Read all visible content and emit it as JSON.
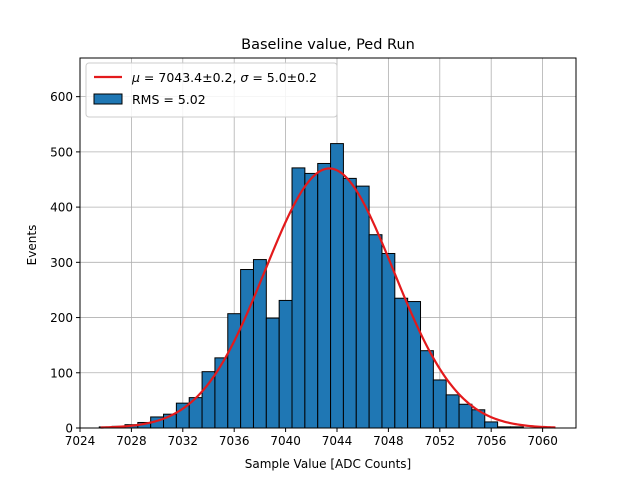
{
  "chart_data": {
    "type": "bar",
    "title": "Baseline value, Ped Run",
    "xlabel": "Sample Value [ADC Counts]",
    "ylabel": "Events",
    "xlim": [
      7024,
      7062.6
    ],
    "ylim": [
      0,
      670
    ],
    "xticks": [
      7024,
      7028,
      7032,
      7036,
      7040,
      7044,
      7048,
      7052,
      7056,
      7060
    ],
    "yticks": [
      0,
      100,
      200,
      300,
      400,
      500,
      600
    ],
    "grid": true,
    "legend_position": "top-left",
    "bin_width": 1,
    "bins": [
      {
        "x": 7026,
        "count": 2
      },
      {
        "x": 7027,
        "count": 3
      },
      {
        "x": 7028,
        "count": 6
      },
      {
        "x": 7029,
        "count": 10
      },
      {
        "x": 7030,
        "count": 20
      },
      {
        "x": 7031,
        "count": 25
      },
      {
        "x": 7032,
        "count": 45
      },
      {
        "x": 7033,
        "count": 55
      },
      {
        "x": 7034,
        "count": 102
      },
      {
        "x": 7035,
        "count": 127
      },
      {
        "x": 7036,
        "count": 207
      },
      {
        "x": 7037,
        "count": 287
      },
      {
        "x": 7038,
        "count": 305
      },
      {
        "x": 7039,
        "count": 199
      },
      {
        "x": 7040,
        "count": 231
      },
      {
        "x": 7041,
        "count": 471
      },
      {
        "x": 7042,
        "count": 461
      },
      {
        "x": 7043,
        "count": 479
      },
      {
        "x": 7044,
        "count": 515
      },
      {
        "x": 7045,
        "count": 452
      },
      {
        "x": 7046,
        "count": 438
      },
      {
        "x": 7047,
        "count": 350
      },
      {
        "x": 7048,
        "count": 316
      },
      {
        "x": 7049,
        "count": 235
      },
      {
        "x": 7050,
        "count": 229
      },
      {
        "x": 7051,
        "count": 140
      },
      {
        "x": 7052,
        "count": 87
      },
      {
        "x": 7053,
        "count": 60
      },
      {
        "x": 7054,
        "count": 43
      },
      {
        "x": 7055,
        "count": 33
      },
      {
        "x": 7056,
        "count": 11
      },
      {
        "x": 7057,
        "count": 2
      },
      {
        "x": 7058,
        "count": 2
      }
    ],
    "fit": {
      "mu": 7043.4,
      "sigma": 5.0,
      "amplitude": 470,
      "x_range": [
        7025.6,
        7061.0
      ]
    },
    "series": [
      {
        "name": "$\\mu = 7043.4 \\pm 0.2$, $\\sigma = 5.0 \\pm 0.2$",
        "kind": "line",
        "color": "#e31a1c"
      },
      {
        "name": "RMS = 5.02",
        "kind": "bar",
        "color": "#1f77b4"
      }
    ]
  },
  "legend": {
    "fit_label_parts": [
      {
        "text": "μ",
        "italic": true
      },
      {
        "text": " = 7043.4±0.2, ",
        "italic": false
      },
      {
        "text": "σ",
        "italic": true
      },
      {
        "text": " = 5.0±0.2",
        "italic": false
      }
    ],
    "hist_label": "RMS = 5.02"
  },
  "colors": {
    "bar_fill": "#1f77b4",
    "bar_edge": "#000000",
    "fit_line": "#e31a1c",
    "grid": "#b0b0b0"
  }
}
